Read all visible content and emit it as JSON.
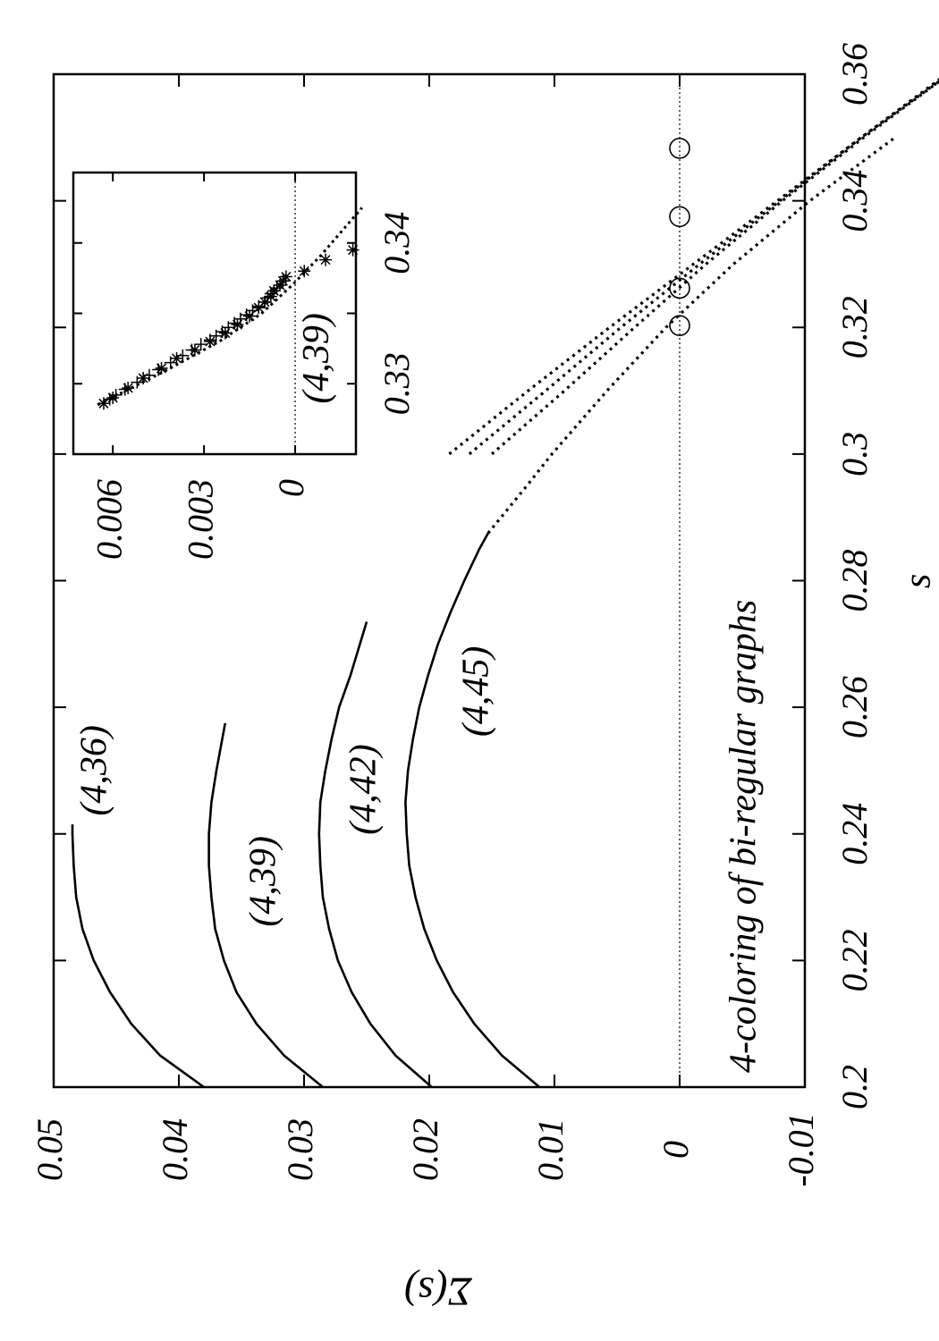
{
  "chart_data": {
    "type": "line",
    "title": "4-coloring of bi-regular graphs",
    "xlabel": "s",
    "ylabel": "Σ(s)",
    "xlim": [
      0.2,
      0.36
    ],
    "ylim": [
      -0.01,
      0.05
    ],
    "x_ticks": [
      "0.2",
      "0.22",
      "0.24",
      "0.26",
      "0.28",
      "0.3",
      "0.32",
      "0.34",
      "0.36"
    ],
    "y_ticks": [
      "-0.01",
      "0",
      "0.01",
      "0.02",
      "0.03",
      "0.04",
      "0.05"
    ],
    "zero_line": true,
    "series": [
      {
        "name": "(4,36)",
        "solid": [
          [
            0.2,
            0.038
          ],
          [
            0.205,
            0.0415
          ],
          [
            0.21,
            0.0438
          ],
          [
            0.215,
            0.0455
          ],
          [
            0.22,
            0.0468
          ],
          [
            0.225,
            0.0477
          ],
          [
            0.23,
            0.0482
          ],
          [
            0.235,
            0.0484
          ],
          [
            0.24,
            0.0485
          ],
          [
            0.2415,
            0.0485
          ]
        ],
        "dotted": [
          [
            0.3,
            0.0184
          ],
          [
            0.31,
            0.0121
          ],
          [
            0.32,
            0.0056
          ],
          [
            0.33,
            -0.0011
          ],
          [
            0.34,
            -0.0078
          ],
          [
            0.35,
            -0.0145
          ],
          [
            0.36,
            -0.0213
          ]
        ],
        "zero_crossing": 0.3483
      },
      {
        "name": "(4,39)",
        "solid": [
          [
            0.2,
            0.0285
          ],
          [
            0.205,
            0.0316
          ],
          [
            0.21,
            0.0338
          ],
          [
            0.215,
            0.0354
          ],
          [
            0.22,
            0.0364
          ],
          [
            0.225,
            0.0371
          ],
          [
            0.23,
            0.0374
          ],
          [
            0.235,
            0.0376
          ],
          [
            0.24,
            0.0376
          ],
          [
            0.245,
            0.0374
          ],
          [
            0.25,
            0.037
          ],
          [
            0.2575,
            0.0363
          ]
        ],
        "dotted": [
          [
            0.3,
            0.0168
          ],
          [
            0.31,
            0.0107
          ],
          [
            0.32,
            0.0047
          ],
          [
            0.33,
            -0.0016
          ],
          [
            0.34,
            -0.008
          ],
          [
            0.35,
            -0.0145
          ],
          [
            0.36,
            -0.0215
          ]
        ],
        "zero_crossing": 0.3375
      },
      {
        "name": "(4,42)",
        "solid": [
          [
            0.2,
            0.0198
          ],
          [
            0.205,
            0.0227
          ],
          [
            0.21,
            0.0247
          ],
          [
            0.215,
            0.0262
          ],
          [
            0.22,
            0.0273
          ],
          [
            0.225,
            0.028
          ],
          [
            0.23,
            0.0285
          ],
          [
            0.235,
            0.0287
          ],
          [
            0.24,
            0.0288
          ],
          [
            0.245,
            0.0287
          ],
          [
            0.25,
            0.0283
          ],
          [
            0.255,
            0.0278
          ],
          [
            0.26,
            0.0272
          ],
          [
            0.265,
            0.0263
          ],
          [
            0.2735,
            0.025
          ]
        ],
        "dotted": [
          [
            0.3,
            0.015
          ],
          [
            0.31,
            0.0092
          ],
          [
            0.32,
            0.0036
          ],
          [
            0.33,
            -0.0021
          ],
          [
            0.34,
            -0.0082
          ],
          [
            0.35,
            -0.0147
          ],
          [
            0.36,
            -0.0215
          ]
        ],
        "zero_crossing": 0.3262
      },
      {
        "name": "(4,45)",
        "solid": [
          [
            0.2,
            0.0112
          ],
          [
            0.205,
            0.0142
          ],
          [
            0.21,
            0.0164
          ],
          [
            0.215,
            0.0181
          ],
          [
            0.22,
            0.0194
          ],
          [
            0.225,
            0.0204
          ],
          [
            0.23,
            0.0211
          ],
          [
            0.235,
            0.0216
          ],
          [
            0.24,
            0.0218
          ],
          [
            0.245,
            0.0219
          ],
          [
            0.25,
            0.0217
          ],
          [
            0.255,
            0.0213
          ],
          [
            0.26,
            0.0208
          ],
          [
            0.265,
            0.0201
          ],
          [
            0.27,
            0.0193
          ],
          [
            0.275,
            0.0183
          ],
          [
            0.28,
            0.0172
          ],
          [
            0.285,
            0.016
          ],
          [
            0.2875,
            0.0153
          ]
        ],
        "dotted": [
          [
            0.2875,
            0.0153
          ],
          [
            0.295,
            0.0122
          ],
          [
            0.3,
            0.0102
          ],
          [
            0.31,
            0.0058
          ],
          [
            0.32,
            0.0011
          ],
          [
            0.33,
            -0.0043
          ],
          [
            0.34,
            -0.0104
          ],
          [
            0.35,
            -0.0172
          ]
        ],
        "zero_crossing": 0.3203
      }
    ],
    "inset": {
      "label": "(4,39)",
      "xlim": [
        0.325,
        0.345
      ],
      "ylim": [
        -0.002,
        0.0073
      ],
      "x_ticks": [
        "0.33",
        "0.34"
      ],
      "y_ticks": [
        "0",
        "0.003",
        "0.006"
      ],
      "zero_line": true,
      "curve": [
        [
          0.3285,
          0.0065
        ],
        [
          0.331,
          0.0042
        ],
        [
          0.333,
          0.0025
        ],
        [
          0.335,
          0.0011
        ],
        [
          0.337,
          0.0001
        ],
        [
          0.339,
          -0.0008
        ],
        [
          0.341,
          -0.0016
        ],
        [
          0.3425,
          -0.0022
        ]
      ],
      "markers_plus": [
        [
          0.3289,
          0.0061
        ],
        [
          0.3292,
          0.0059
        ],
        [
          0.3296,
          0.0056
        ],
        [
          0.3301,
          0.0052
        ],
        [
          0.3306,
          0.0048
        ],
        [
          0.331,
          0.0045
        ],
        [
          0.3315,
          0.0041
        ],
        [
          0.332,
          0.0037
        ],
        [
          0.3324,
          0.0034
        ],
        [
          0.3328,
          0.0031
        ],
        [
          0.3331,
          0.0028
        ],
        [
          0.3334,
          0.0026
        ],
        [
          0.3337,
          0.0024
        ],
        [
          0.334,
          0.0022
        ],
        [
          0.3343,
          0.002
        ],
        [
          0.3346,
          0.0018
        ],
        [
          0.3349,
          0.0016
        ],
        [
          0.3352,
          0.0014
        ],
        [
          0.3355,
          0.0012
        ],
        [
          0.3358,
          0.001
        ],
        [
          0.3361,
          0.0009
        ],
        [
          0.3364,
          0.0008
        ],
        [
          0.3366,
          0.0007
        ],
        [
          0.3368,
          0.0006
        ]
      ],
      "markers_star": [
        [
          0.3286,
          0.0063
        ],
        [
          0.329,
          0.006
        ],
        [
          0.3297,
          0.0055
        ],
        [
          0.3304,
          0.005
        ],
        [
          0.3311,
          0.0044
        ],
        [
          0.3318,
          0.0039
        ],
        [
          0.3324,
          0.0033
        ],
        [
          0.333,
          0.0028
        ],
        [
          0.3336,
          0.0023
        ],
        [
          0.3342,
          0.0019
        ],
        [
          0.3348,
          0.0015
        ],
        [
          0.3354,
          0.0012
        ],
        [
          0.3358,
          0.001
        ],
        [
          0.3362,
          0.0008
        ],
        [
          0.3366,
          0.0007
        ],
        [
          0.337,
          0.0005
        ],
        [
          0.3373,
          0.0004
        ],
        [
          0.3376,
          0.0003
        ],
        [
          0.338,
          -0.0003
        ],
        [
          0.3388,
          -0.001
        ],
        [
          0.3395,
          -0.0019
        ]
      ]
    }
  }
}
